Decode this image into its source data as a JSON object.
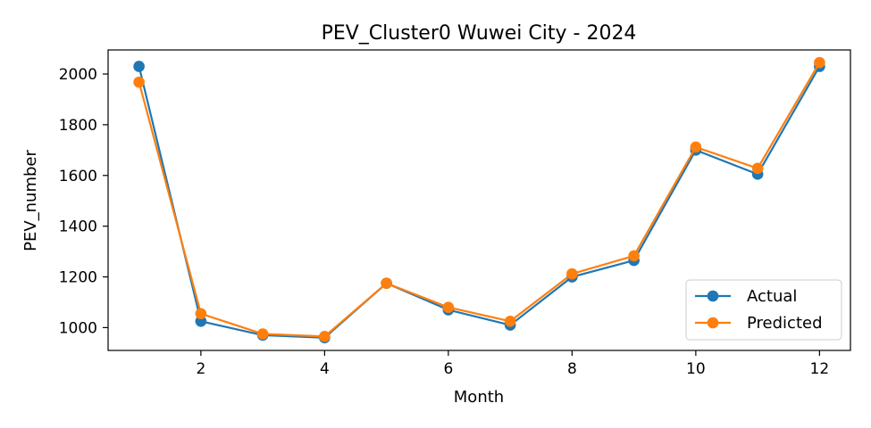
{
  "chart_data": {
    "type": "line",
    "title": "PEV_Cluster0 Wuwei City - 2024",
    "xlabel": "Month",
    "ylabel": "PEV_number",
    "x": [
      1,
      2,
      3,
      4,
      5,
      6,
      7,
      8,
      9,
      10,
      11,
      12
    ],
    "xlim": [
      0.5,
      12.5
    ],
    "ylim": [
      910,
      2095
    ],
    "xticks": [
      2,
      4,
      6,
      8,
      10,
      12
    ],
    "yticks": [
      1000,
      1200,
      1400,
      1600,
      1800,
      2000
    ],
    "grid": false,
    "legend_position": "lower right",
    "marker": "circle",
    "series": [
      {
        "name": "Actual",
        "color": "#1f77b4",
        "values": [
          2030,
          1025,
          970,
          960,
          1175,
          1070,
          1010,
          1200,
          1265,
          1700,
          1605,
          2030
        ]
      },
      {
        "name": "Predicted",
        "color": "#ff7f0e",
        "values": [
          1968,
          1055,
          975,
          965,
          1175,
          1080,
          1025,
          1212,
          1283,
          1712,
          1628,
          2045
        ]
      }
    ]
  }
}
